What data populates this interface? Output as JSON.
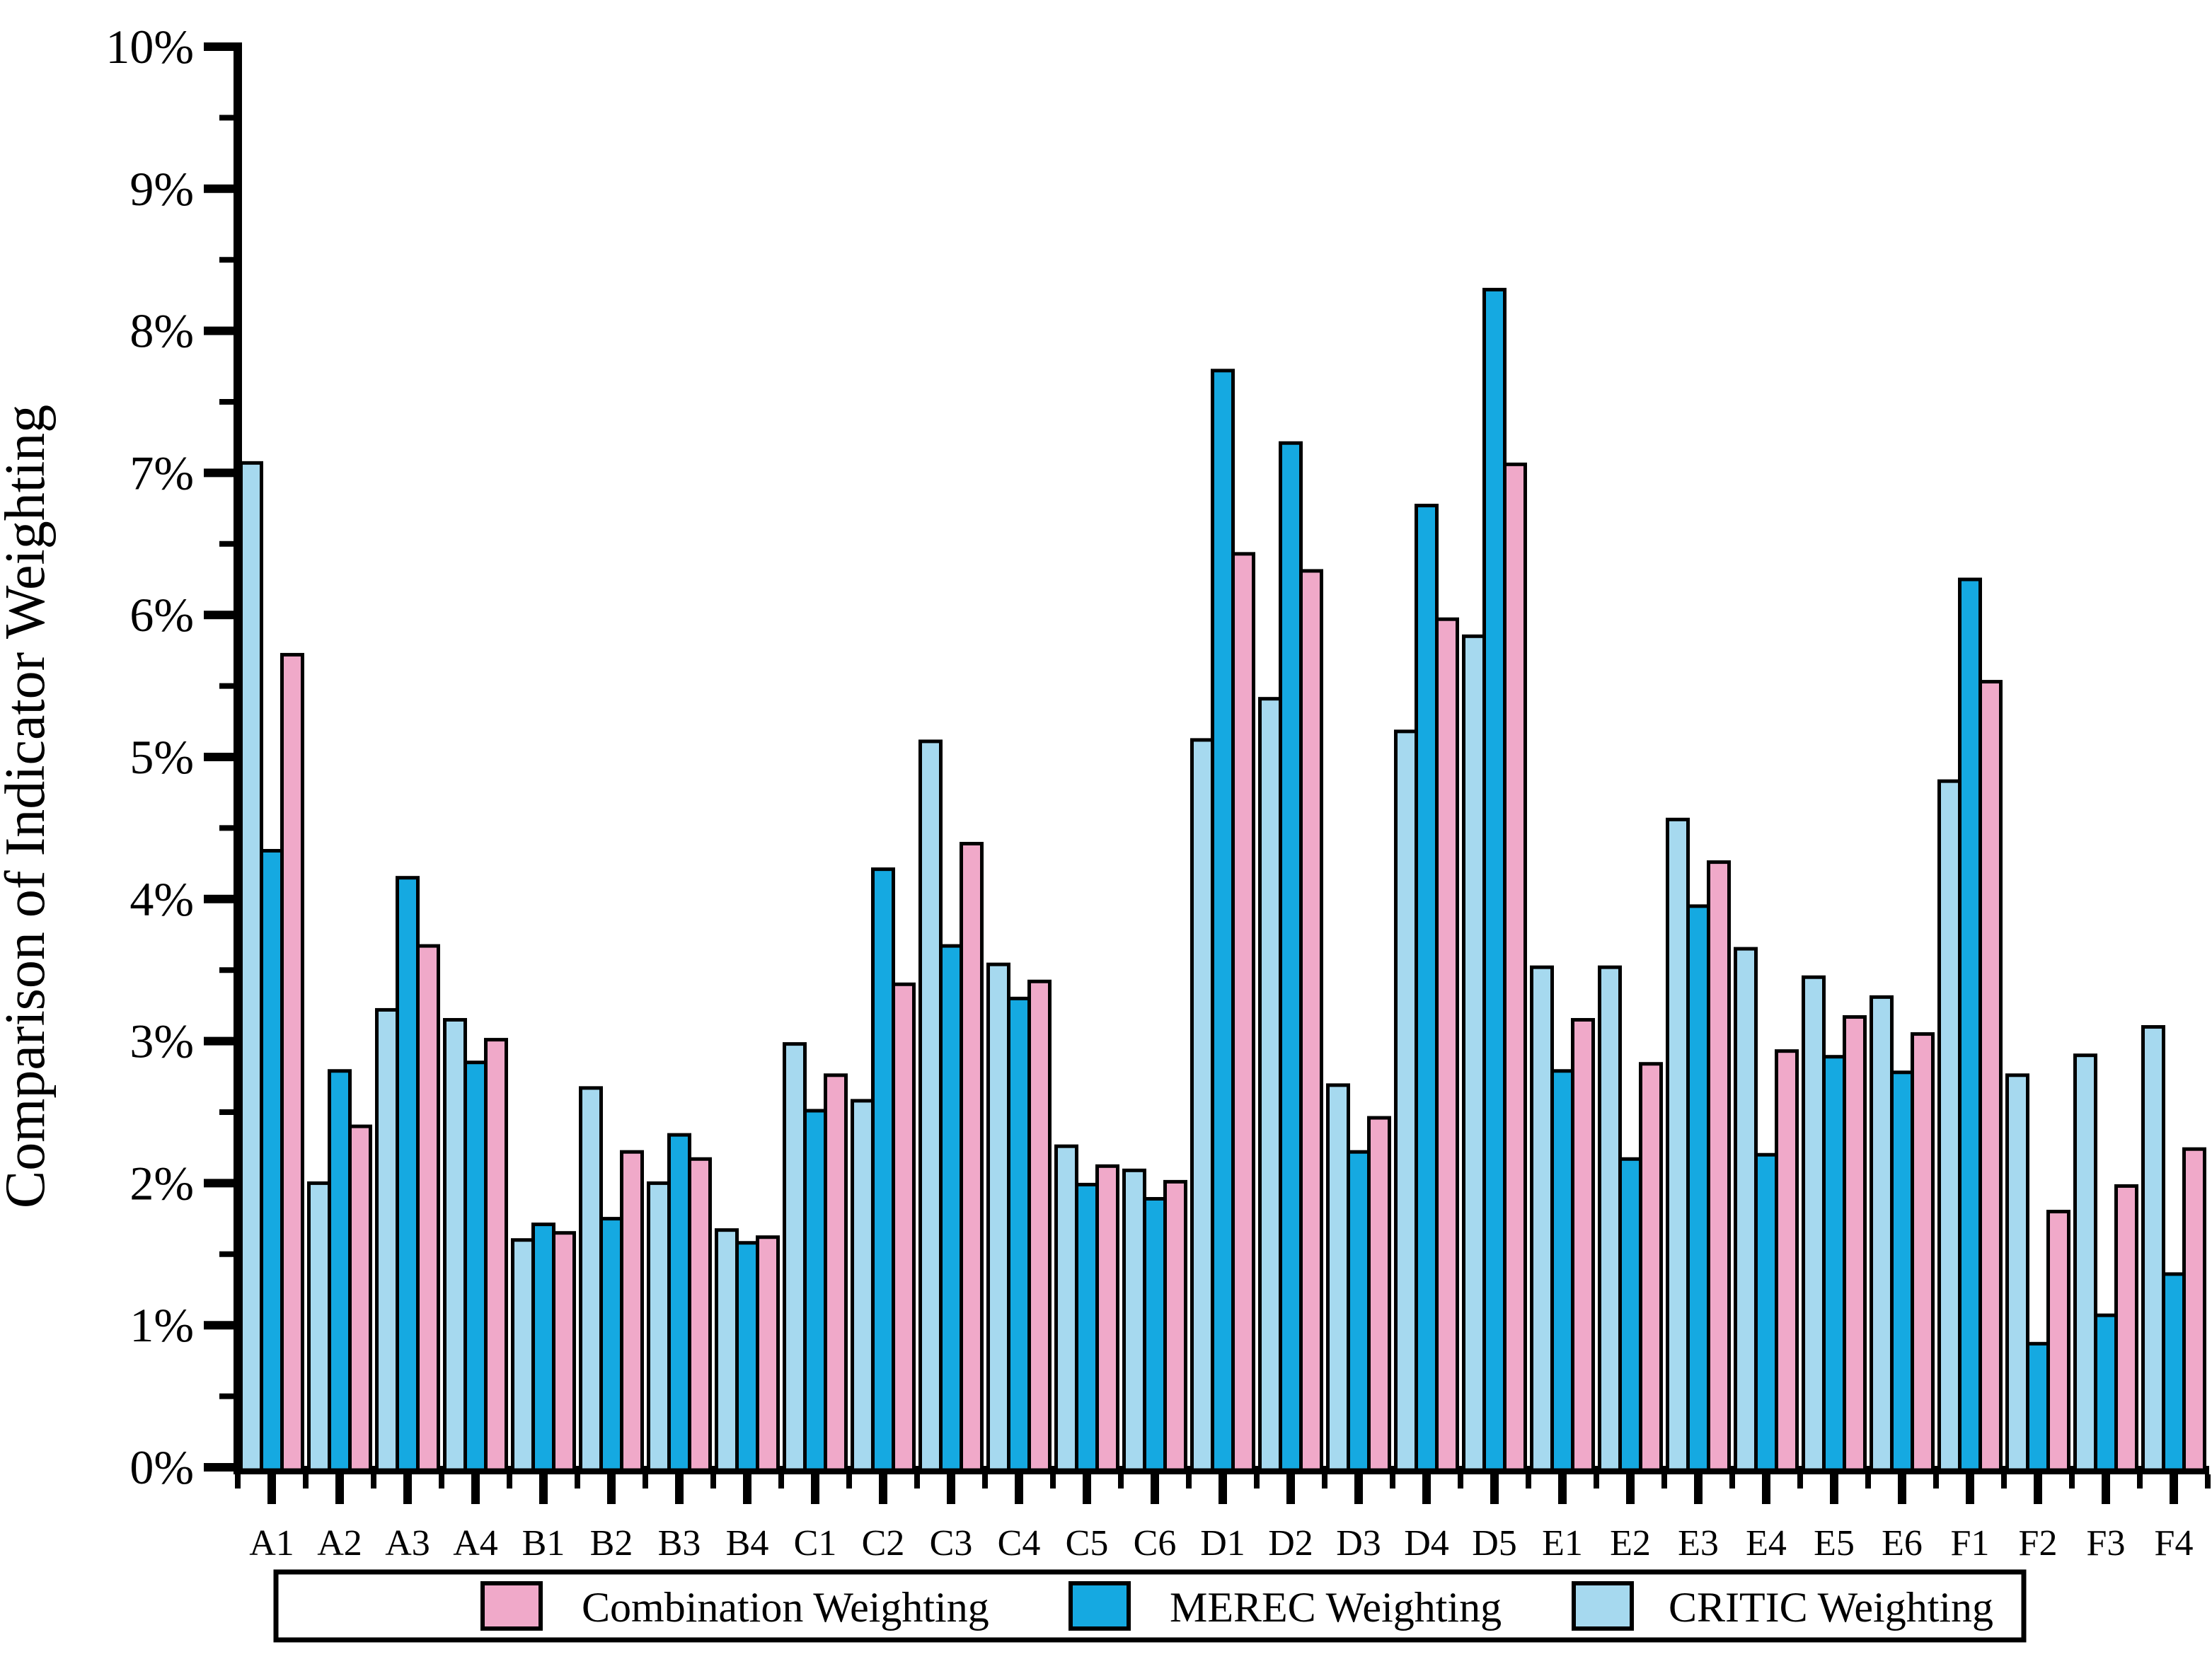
{
  "page": {
    "background": "#FFFFFF"
  },
  "chart_data": {
    "type": "bar",
    "title": "",
    "xlabel": "",
    "ylabel": "Comparison of Indicator Weighting",
    "ylim": [
      0,
      10
    ],
    "y_tick_step": 1,
    "y_minor_tick_step": 0.5,
    "y_tick_labels": [
      "0%",
      "1%",
      "2%",
      "3%",
      "4%",
      "5%",
      "6%",
      "7%",
      "8%",
      "9%",
      "10%"
    ],
    "grid": "off",
    "legend_position": "bottom-center",
    "axis_color": "#000000",
    "bar_border_color": "#000000",
    "categories": [
      "A1",
      "A2",
      "A3",
      "A4",
      "B1",
      "B2",
      "B3",
      "B4",
      "C1",
      "C2",
      "C3",
      "C4",
      "C5",
      "C6",
      "D1",
      "D2",
      "D3",
      "D4",
      "D5",
      "E1",
      "E2",
      "E3",
      "E4",
      "E5",
      "E6",
      "F1",
      "F2",
      "F3",
      "F4"
    ],
    "bar_order_in_group": [
      "CRITIC Weighting",
      "MEREC Weighting",
      "Combination Weighting"
    ],
    "legend_order": [
      "Combination Weighting",
      "MEREC Weighting",
      "CRITIC Weighting"
    ],
    "series": [
      {
        "name": "CRITIC Weighting",
        "color": "#A6D9EF",
        "values": [
          7.07,
          2.0,
          3.22,
          3.15,
          1.6,
          2.67,
          2.0,
          1.67,
          2.98,
          2.58,
          5.11,
          3.54,
          2.26,
          2.09,
          5.12,
          5.41,
          2.69,
          5.18,
          5.85,
          3.52,
          3.52,
          4.56,
          3.65,
          3.45,
          3.31,
          4.83,
          2.76,
          2.9,
          3.1
        ]
      },
      {
        "name": "MEREC Weighting",
        "color": "#15A9E1",
        "values": [
          4.34,
          2.79,
          4.15,
          2.85,
          1.71,
          1.75,
          2.34,
          1.58,
          2.51,
          4.21,
          3.67,
          3.3,
          1.99,
          1.89,
          7.72,
          7.21,
          2.22,
          6.77,
          8.29,
          2.79,
          2.17,
          3.95,
          2.2,
          2.89,
          2.78,
          6.25,
          0.87,
          1.07,
          1.36
        ]
      },
      {
        "name": "Combination Weighting",
        "color": "#F0A9C9",
        "values": [
          5.72,
          2.4,
          3.67,
          3.01,
          1.65,
          2.22,
          2.17,
          1.62,
          2.76,
          3.4,
          4.39,
          3.42,
          2.12,
          2.01,
          6.43,
          6.31,
          2.46,
          5.97,
          7.06,
          3.15,
          2.84,
          4.26,
          2.93,
          3.17,
          3.05,
          5.53,
          1.8,
          1.98,
          2.24
        ]
      }
    ]
  }
}
